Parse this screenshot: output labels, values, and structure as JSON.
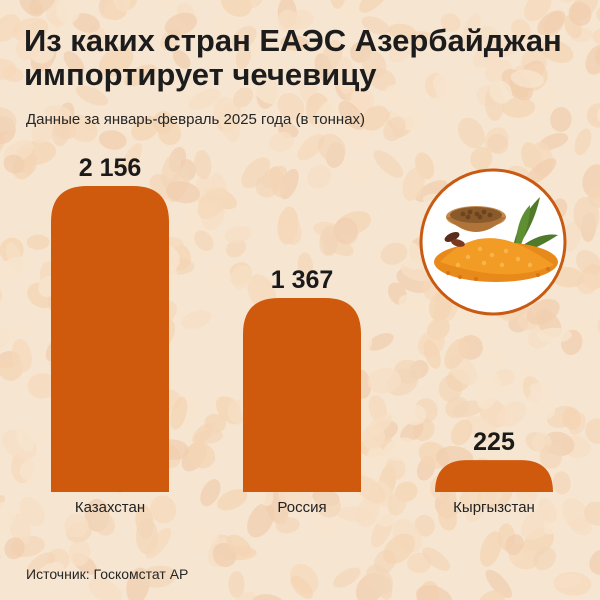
{
  "title": "Из каких стран ЕАЭС Азербайджан импортирует чечевицу",
  "subtitle": "Данные за январь-февраль 2025 года (в тоннах)",
  "source": "Источник: Госкомстат АР",
  "colors": {
    "bar": "#cf5a0e",
    "background": "#f3dcc4",
    "badge_border": "#c95a12"
  },
  "icons": [
    "lentils-illustration-icon"
  ],
  "chart_data": {
    "type": "bar",
    "title": "Из каких стран ЕАЭС Азербайджан импортирует чечевицу",
    "subtitle": "Данные за январь-февраль 2025 года (в тоннах)",
    "categories": [
      "Казахстан",
      "Россия",
      "Кыргызстан"
    ],
    "values": [
      2156,
      1367,
      225
    ],
    "value_labels": [
      "2 156",
      "1 367",
      "225"
    ],
    "ylim": [
      0,
      2156
    ],
    "grid": false,
    "legend": "none"
  }
}
